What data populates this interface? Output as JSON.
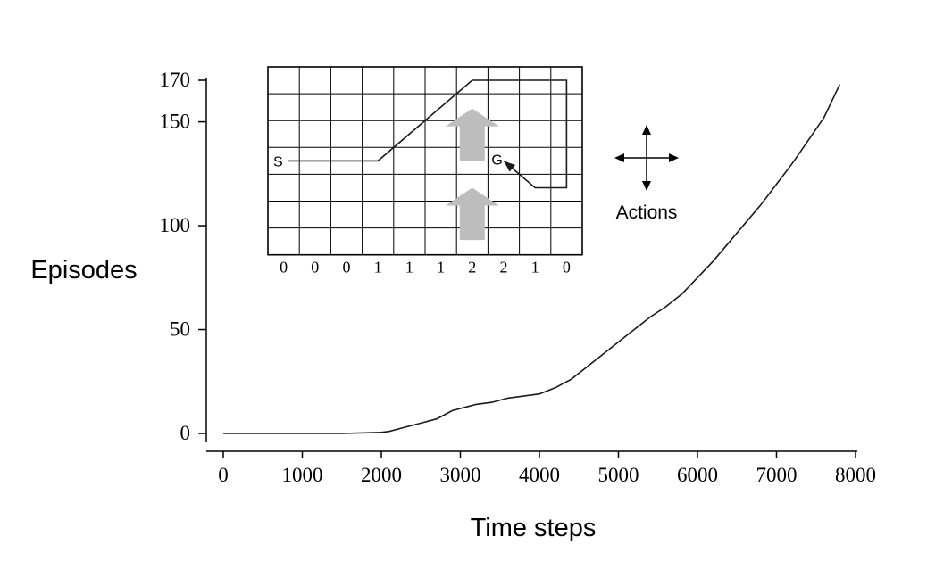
{
  "chart_data": {
    "type": "line",
    "title": "",
    "xlabel": "Time steps",
    "ylabel": "Episodes",
    "xlim": [
      0,
      8000
    ],
    "ylim": [
      0,
      170
    ],
    "x_ticks": [
      "0",
      "1000",
      "2000",
      "3000",
      "4000",
      "5000",
      "6000",
      "7000",
      "8000"
    ],
    "y_ticks": [
      "0",
      "50",
      "100",
      "150",
      "170"
    ],
    "grid": false,
    "series": [
      {
        "x": [
          0,
          500,
          1000,
          1500,
          2000,
          2100,
          2300,
          2500,
          2700,
          2800,
          2900,
          3000,
          3100,
          3200,
          3400,
          3600,
          3800,
          4000,
          4200,
          4400,
          4600,
          4800,
          5000,
          5200,
          5400,
          5600,
          5800,
          6000,
          6200,
          6400,
          6600,
          6800,
          7000,
          7200,
          7400,
          7600,
          7800
        ],
        "y": [
          0,
          0,
          0,
          0,
          0.5,
          1,
          3,
          5,
          7,
          9,
          11,
          12,
          13,
          14,
          15,
          17,
          18,
          19,
          22,
          26,
          32,
          38,
          44,
          50,
          56,
          61,
          67,
          75,
          83,
          92,
          101,
          110,
          120,
          130,
          141,
          152,
          168
        ]
      }
    ],
    "inset": {
      "grid_cols": 10,
      "grid_rows": 7,
      "start_label": "S",
      "goal_label": "G",
      "wind_values": [
        "0",
        "0",
        "0",
        "1",
        "1",
        "1",
        "2",
        "2",
        "1",
        "0"
      ],
      "path": [
        [
          0,
          3.5
        ],
        [
          3.5,
          3.5
        ],
        [
          6.5,
          0.5
        ],
        [
          9.5,
          0.5
        ],
        [
          9.5,
          4.5
        ],
        [
          8.5,
          4.5
        ],
        [
          7.5,
          3.5
        ]
      ],
      "wind_arrow_color": "#bdbdbd",
      "actions_label": "Actions"
    },
    "line_color": "#1a1a1a",
    "axis_color": "#000000"
  }
}
